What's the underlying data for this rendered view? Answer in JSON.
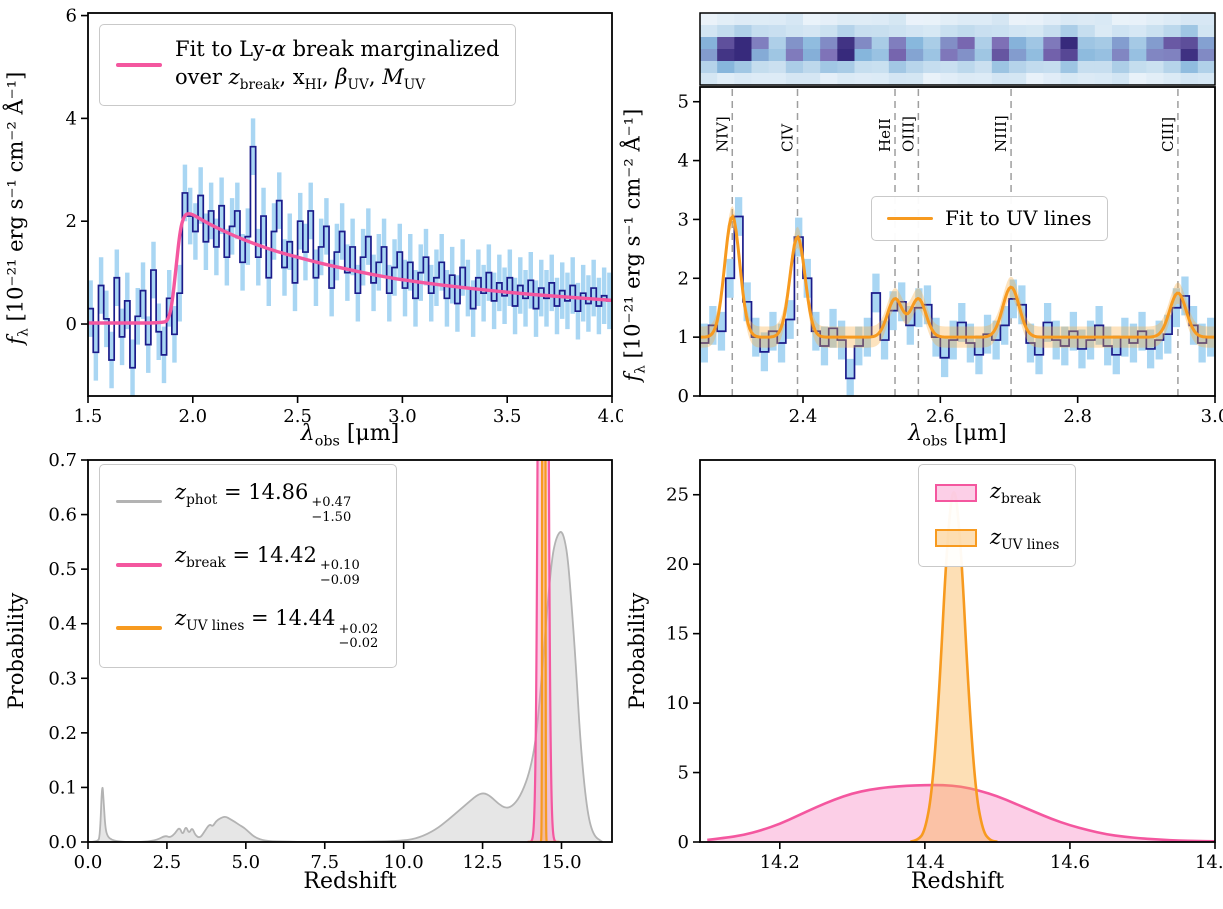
{
  "colors": {
    "navy": "#1b1b8a",
    "lightblue": "#a9d6f3",
    "pink": "#f4579f",
    "orange": "#f79a1f",
    "gray": "#b3b3b3"
  },
  "panels": {
    "lya": {
      "ylabel": {
        "pre": "f",
        "sub": "λ",
        "post": " [10⁻²¹ erg s⁻¹ cm⁻² Å⁻¹]"
      },
      "xlabel": {
        "pre": "λ",
        "sub": "obs",
        "post": " [μm]"
      },
      "legend": {
        "line1a": "Fit to Ly-",
        "line1b": "α",
        "line1c": " break marginalized",
        "t0": "over ",
        "v1": "z",
        "s1": "break",
        "t1": ", x",
        "s2": "HI",
        "t2": ", ",
        "v3": "β",
        "s3": "UV",
        "t3": ", ",
        "v4": "M",
        "s4": "UV"
      }
    },
    "uv": {
      "ylabel": {
        "pre": "f",
        "sub": "λ",
        "post": " [10⁻²¹ erg s⁻¹ cm⁻² Å⁻¹]"
      },
      "xlabel": {
        "pre": "λ",
        "sub": "obs",
        "post": " [μm]"
      },
      "legend": {
        "label": "Fit to UV lines"
      }
    },
    "zfull": {
      "xlabel": "Redshift",
      "ylabel": "Probability",
      "legend": [
        {
          "sym": "z",
          "sub": "phot",
          "eq": " = 14.86",
          "sup": "+0.47",
          "inf": "−1.50"
        },
        {
          "sym": "z",
          "sub": "break",
          "eq": " = 14.42",
          "sup": "+0.10",
          "inf": "−0.09"
        },
        {
          "sym": "z",
          "sub": "UV lines",
          "eq": " = 14.44",
          "sup": "+0.02",
          "inf": "−0.02"
        }
      ]
    },
    "zzoom": {
      "xlabel": "Redshift",
      "ylabel": "Probability",
      "legend": [
        {
          "sym": "z",
          "sub": "break"
        },
        {
          "sym": "z",
          "sub": "UV lines"
        }
      ]
    }
  },
  "chart_data": [
    {
      "id": "lya-break-spectrum",
      "type": "line",
      "title": "",
      "xlabel": "λ_obs [μm]",
      "ylabel": "f_λ [10^-21 erg s^-1 cm^-2 Å^-1]",
      "legend": "Fit to Ly-α break marginalized over z_break, x_HI, β_UV, M_UV",
      "xlim": [
        1.5,
        4.0
      ],
      "ylim": [
        -1.4,
        6.05
      ],
      "xticks": [
        1.5,
        2.0,
        2.5,
        3.0,
        3.5,
        4.0
      ],
      "xtick_labels": [
        "1.5",
        "2.0",
        "2.5",
        "3.0",
        "3.5",
        "4.0"
      ],
      "yticks": [
        0,
        2,
        4,
        6
      ],
      "ytick_labels": [
        "0",
        "2",
        "4",
        "6"
      ],
      "x_start": 1.5,
      "x_step": 0.025,
      "yerr": 0.55,
      "data_color": "#1b1b8a",
      "err_color": "#a9d6f3",
      "fit_color": "#f4579f",
      "spectrum_y": [
        0.3,
        -0.55,
        0.75,
        0.1,
        -0.7,
        0.9,
        -0.25,
        0.45,
        -0.85,
        0.15,
        0.65,
        -0.4,
        1.05,
        -0.15,
        -0.6,
        0.5,
        -0.2,
        0.6,
        2.55,
        2.1,
        1.8,
        2.5,
        1.6,
        2.2,
        1.5,
        2.3,
        1.3,
        1.9,
        2.2,
        1.2,
        1.7,
        3.45,
        1.3,
        2.1,
        0.9,
        1.8,
        2.4,
        1.1,
        1.6,
        0.8,
        2.0,
        1.4,
        2.2,
        0.9,
        1.5,
        1.9,
        0.7,
        1.4,
        1.8,
        1.0,
        1.5,
        0.6,
        1.3,
        1.7,
        0.8,
        1.2,
        1.5,
        0.6,
        1.1,
        1.4,
        0.7,
        1.2,
        0.5,
        1.0,
        1.3,
        0.6,
        0.9,
        1.2,
        0.5,
        0.95,
        0.4,
        1.1,
        0.7,
        0.3,
        0.9,
        0.6,
        1.0,
        0.45,
        0.8,
        0.55,
        0.9,
        0.35,
        0.75,
        0.5,
        0.85,
        0.3,
        0.7,
        0.5,
        0.8,
        0.35,
        0.65,
        0.45,
        0.75,
        0.25,
        0.6,
        0.4,
        0.7,
        0.35,
        0.55,
        0.45
      ],
      "fit_x": [
        1.5,
        1.7,
        1.8,
        1.85,
        1.88,
        1.9,
        1.92,
        1.94,
        1.96,
        1.98,
        2.0,
        2.05,
        2.1,
        2.2,
        2.3,
        2.4,
        2.5,
        2.6,
        2.7,
        2.8,
        2.9,
        3.0,
        3.2,
        3.4,
        3.6,
        3.8,
        4.0
      ],
      "fit_y": [
        0.02,
        0.02,
        0.02,
        0.03,
        0.05,
        0.35,
        1.1,
        1.85,
        2.12,
        2.15,
        2.13,
        2.01,
        1.9,
        1.71,
        1.55,
        1.41,
        1.3,
        1.19,
        1.1,
        1.01,
        0.93,
        0.86,
        0.75,
        0.66,
        0.58,
        0.52,
        0.46
      ]
    },
    {
      "id": "uv-lines-spectrum",
      "type": "line",
      "title": "",
      "xlabel": "λ_obs [μm]",
      "ylabel": "f_λ [10^-21 erg s^-1 cm^-2 Å^-1]",
      "legend": "Fit to UV lines",
      "xlim": [
        2.25,
        3.0
      ],
      "ylim": [
        0,
        5.25
      ],
      "xticks": [
        2.4,
        2.6,
        2.8,
        3.0
      ],
      "xtick_labels": [
        "2.4",
        "2.6",
        "2.8",
        "3.0"
      ],
      "yticks": [
        0,
        1,
        2,
        3,
        4,
        5
      ],
      "ytick_labels": [
        "0",
        "1",
        "2",
        "3",
        "4",
        "5"
      ],
      "x_start": 2.25,
      "x_step": 0.0125,
      "yerr": 0.33,
      "data_color": "#1b1b8a",
      "err_color": "#a9d6f3",
      "fit_color": "#f79a1f",
      "band_fill": "rgba(250,175,70,0.35)",
      "vline_color": "#9e9e9e",
      "continuum": 1.0,
      "band": 0.18,
      "spectrum_y": [
        0.9,
        1.2,
        1.1,
        2.0,
        3.05,
        1.6,
        1.0,
        0.75,
        1.1,
        0.9,
        1.3,
        2.7,
        2.0,
        1.1,
        0.85,
        1.15,
        0.95,
        0.3,
        0.85,
        1.0,
        1.75,
        0.95,
        1.45,
        1.6,
        1.2,
        1.5,
        1.55,
        1.0,
        0.65,
        0.95,
        1.25,
        0.9,
        0.7,
        1.05,
        0.95,
        1.2,
        1.65,
        1.55,
        0.9,
        0.7,
        1.25,
        0.95,
        0.85,
        1.1,
        0.8,
        0.95,
        1.2,
        0.85,
        0.7,
        1.0,
        0.9,
        1.1,
        0.8,
        0.95,
        1.05,
        1.5,
        1.7,
        1.2,
        0.9,
        1.0
      ],
      "lines": [
        {
          "label": "NIV]",
          "x": 2.297,
          "amp": 2.05,
          "sigma": 0.011
        },
        {
          "label": "CIV",
          "x": 2.392,
          "amp": 1.7,
          "sigma": 0.011
        },
        {
          "label": "HeII",
          "x": 2.534,
          "amp": 0.65,
          "sigma": 0.011
        },
        {
          "label": "OIII]",
          "x": 2.568,
          "amp": 0.65,
          "sigma": 0.011
        },
        {
          "label": "NIII]",
          "x": 2.703,
          "amp": 0.85,
          "sigma": 0.012
        },
        {
          "label": "CIII]",
          "x": 2.946,
          "amp": 0.75,
          "sigma": 0.012
        }
      ],
      "strip_trace": [
        0.6,
        0.85,
        0.95,
        0.65,
        0.5,
        0.72,
        0.55,
        0.68,
        0.9,
        0.62,
        0.52,
        0.78,
        0.58,
        0.42,
        0.64,
        0.72,
        0.5,
        0.82,
        0.6,
        0.46,
        0.7,
        0.92,
        0.56,
        0.5,
        0.66,
        0.44,
        0.6,
        0.76,
        0.95,
        0.68
      ],
      "strip_row_weights": [
        0.12,
        0.4,
        0.95,
        1.0,
        0.55,
        0.18
      ],
      "strip_cmap": [
        [
          0,
          "#f2f7fc"
        ],
        [
          0.4,
          "#c3dcee"
        ],
        [
          0.62,
          "#86b6dc"
        ],
        [
          0.82,
          "#7e6cb4"
        ],
        [
          1,
          "#372a7c"
        ]
      ]
    },
    {
      "id": "redshift-posterior-full",
      "type": "area",
      "title": "",
      "xlabel": "Redshift",
      "ylabel": "Probability",
      "xlim": [
        0,
        16.6
      ],
      "ylim": [
        0,
        0.7
      ],
      "xticks": [
        0,
        2.5,
        5,
        7.5,
        10,
        12.5,
        15
      ],
      "xtick_labels": [
        "0.0",
        "2.5",
        "5.0",
        "7.5",
        "10.0",
        "12.5",
        "15.0"
      ],
      "yticks": [
        0,
        0.1,
        0.2,
        0.3,
        0.4,
        0.5,
        0.6,
        0.7
      ],
      "ytick_labels": [
        "0.0",
        "0.1",
        "0.2",
        "0.3",
        "0.4",
        "0.5",
        "0.6",
        "0.7"
      ],
      "series": [
        {
          "name": "z_phot",
          "summary": "14.86 +0.47 −1.50",
          "color": "#b3b3b3",
          "fill": "rgba(200,200,200,0.45)",
          "x": [
            0.0,
            0.3,
            0.38,
            0.45,
            0.5,
            0.55,
            0.62,
            0.75,
            0.95,
            1.3,
            1.8,
            2.2,
            2.45,
            2.6,
            2.75,
            2.9,
            3.0,
            3.1,
            3.2,
            3.3,
            3.4,
            3.55,
            3.7,
            3.85,
            3.95,
            4.05,
            4.2,
            4.35,
            4.5,
            4.65,
            4.8,
            4.95,
            5.1,
            5.3,
            5.6,
            6.0,
            7.0,
            8.5,
            10.0,
            10.5,
            11.0,
            11.4,
            11.8,
            12.1,
            12.35,
            12.55,
            12.75,
            13.0,
            13.25,
            13.5,
            13.75,
            14.0,
            14.2,
            14.4,
            14.55,
            14.7,
            14.8,
            14.9,
            15.0,
            15.1,
            15.2,
            15.3,
            15.45,
            15.6,
            15.8,
            16.0,
            16.3
          ],
          "y": [
            0.0,
            0.0,
            0.01,
            0.115,
            0.07,
            0.025,
            0.01,
            0.004,
            0.001,
            0.0,
            0.0,
            0.004,
            0.012,
            0.008,
            0.015,
            0.028,
            0.012,
            0.03,
            0.015,
            0.027,
            0.012,
            0.007,
            0.02,
            0.033,
            0.028,
            0.038,
            0.044,
            0.047,
            0.042,
            0.037,
            0.031,
            0.026,
            0.018,
            0.008,
            0.002,
            0.001,
            0.0,
            0.0,
            0.002,
            0.008,
            0.022,
            0.04,
            0.06,
            0.075,
            0.087,
            0.09,
            0.084,
            0.07,
            0.061,
            0.068,
            0.09,
            0.13,
            0.19,
            0.32,
            0.43,
            0.52,
            0.55,
            0.565,
            0.57,
            0.555,
            0.52,
            0.45,
            0.33,
            0.18,
            0.06,
            0.012,
            0.0
          ]
        },
        {
          "name": "z_break",
          "summary": "14.42 +0.10 −0.09",
          "color": "#f4579f",
          "fill": "rgba(247,135,195,0.4)",
          "center": 14.42,
          "sigma": 0.095,
          "peak": 4.2
        },
        {
          "name": "z_UV lines",
          "summary": "14.44 +0.02 −0.02",
          "color": "#f79a1f",
          "fill": "rgba(250,175,70,0.4)",
          "center": 14.44,
          "sigma": 0.02,
          "peak": 26.5
        }
      ]
    },
    {
      "id": "redshift-posterior-zoom",
      "type": "area",
      "title": "",
      "xlabel": "Redshift",
      "ylabel": "Probability",
      "xlim": [
        14.09,
        14.8
      ],
      "ylim": [
        0,
        27.5
      ],
      "xticks": [
        14.2,
        14.4,
        14.6,
        14.8
      ],
      "xtick_labels": [
        "14.2",
        "14.4",
        "14.6",
        "14.8"
      ],
      "yticks": [
        0,
        5,
        10,
        15,
        20,
        25
      ],
      "ytick_labels": [
        "0",
        "5",
        "10",
        "15",
        "20",
        "25"
      ],
      "series": [
        {
          "name": "z_break",
          "color": "#f4579f",
          "fill": "rgba(247,135,195,0.4)",
          "x": [
            14.1,
            14.125,
            14.15,
            14.175,
            14.2,
            14.225,
            14.25,
            14.275,
            14.3,
            14.325,
            14.35,
            14.375,
            14.4,
            14.425,
            14.45,
            14.475,
            14.5,
            14.525,
            14.55,
            14.575,
            14.6,
            14.625,
            14.65,
            14.675,
            14.7,
            14.725,
            14.75,
            14.775,
            14.8
          ],
          "y": [
            0.15,
            0.3,
            0.5,
            0.85,
            1.3,
            1.9,
            2.5,
            3.05,
            3.5,
            3.78,
            3.95,
            4.05,
            4.1,
            4.1,
            4.0,
            3.7,
            3.3,
            2.75,
            2.2,
            1.65,
            1.2,
            0.85,
            0.55,
            0.38,
            0.25,
            0.17,
            0.1,
            0.07,
            0.05
          ]
        },
        {
          "name": "z_UV lines",
          "color": "#f79a1f",
          "fill": "rgba(250,175,70,0.4)",
          "x": [
            14.38,
            14.39,
            14.4,
            14.41,
            14.42,
            14.43,
            14.44,
            14.45,
            14.46,
            14.47,
            14.48,
            14.49,
            14.5
          ],
          "y": [
            0.02,
            0.1,
            0.75,
            3.6,
            10.9,
            21.2,
            26.5,
            21.2,
            10.9,
            3.6,
            0.75,
            0.1,
            0.02
          ]
        }
      ]
    }
  ]
}
